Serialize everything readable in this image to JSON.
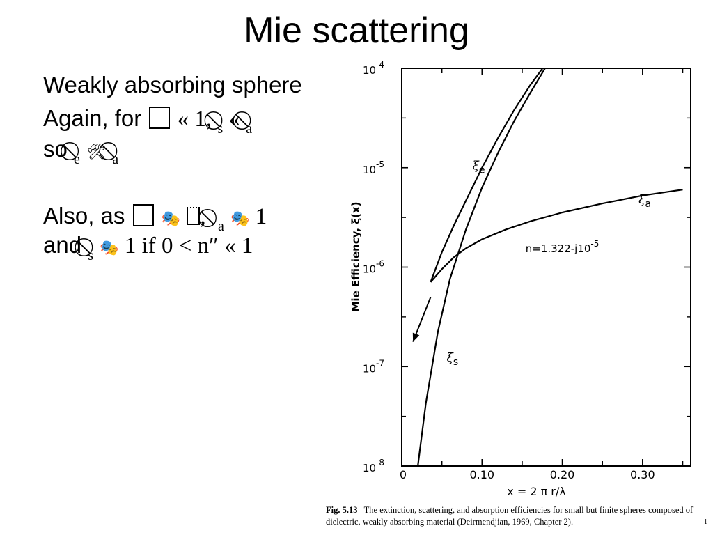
{
  "slide": {
    "title": "Mie scattering",
    "line1": "Weakly absorbing sphere",
    "line2": {
      "prefix": "Again, for ",
      "ll1": " « 1, ",
      "sub_s": "s",
      "ll2": " « ",
      "sub_a": "a"
    },
    "line3": {
      "prefix": "so ",
      "sub_e": "e",
      "sub_a": "a"
    },
    "line4": {
      "prefix": "Also, as ",
      "comma": ", ",
      "sub_a": "a",
      "one": " 1"
    },
    "line5": {
      "prefix": "and ",
      "sub_s": "s",
      "rest": " 1 if 0 < n″ « 1"
    },
    "icons": {
      "empty_box": "empty-box-icon",
      "no_symbol": "no-symbol-icon",
      "tools": "hammer-wrench-icon",
      "masks": "performing-arts-masks-icon",
      "small_box": "small-box-icon"
    }
  },
  "chart_data": {
    "type": "line",
    "ylabel": "Mie Efficiency,  ξ(x)",
    "xlabel": "x  = 2 π r/λ",
    "xlim": [
      0,
      0.36
    ],
    "ylim_log10": [
      -8,
      -4
    ],
    "x_ticks": [
      0,
      0.1,
      0.2,
      0.3
    ],
    "x_tick_labels": [
      "0",
      "0.10",
      "0.20",
      "0.30"
    ],
    "y_tick_labels": [
      {
        "base": "10",
        "exp": "-4",
        "log10": -4
      },
      {
        "base": "10",
        "exp": "-5",
        "log10": -5
      },
      {
        "base": "10",
        "exp": "-6",
        "log10": -6
      },
      {
        "base": "10",
        "exp": "-7",
        "log10": -7
      },
      {
        "base": "10",
        "exp": "-8",
        "log10": -8
      }
    ],
    "annotation": {
      "text": "n=1.322-j10",
      "exp": "-5",
      "x": 0.2,
      "log10": -5.85
    },
    "arrow": {
      "from": [
        0.036,
        -6.3
      ],
      "to": [
        0.014,
        -6.75
      ]
    },
    "series": [
      {
        "label": "ξ",
        "sub": "e",
        "label_x": 0.088,
        "label_log10": -5.02,
        "x": [
          0.036,
          0.05,
          0.065,
          0.08,
          0.1,
          0.12,
          0.14,
          0.16,
          0.18
        ],
        "log10": [
          -6.15,
          -5.85,
          -5.58,
          -5.33,
          -5.0,
          -4.7,
          -4.42,
          -4.17,
          -3.95
        ]
      },
      {
        "label": "ξ",
        "sub": "s",
        "label_x": 0.056,
        "label_log10": -6.95,
        "x": [
          0.02,
          0.03,
          0.045,
          0.06,
          0.08,
          0.1,
          0.12,
          0.14,
          0.16,
          0.18
        ],
        "log10": [
          -8.0,
          -7.37,
          -6.65,
          -6.12,
          -5.62,
          -5.2,
          -4.85,
          -4.53,
          -4.25,
          -3.98
        ]
      },
      {
        "label": "ξ",
        "sub": "a",
        "label_x": 0.295,
        "label_log10": -5.36,
        "x": [
          0.036,
          0.05,
          0.065,
          0.08,
          0.1,
          0.13,
          0.16,
          0.2,
          0.25,
          0.3,
          0.35
        ],
        "log10": [
          -6.15,
          -6.02,
          -5.9,
          -5.81,
          -5.72,
          -5.62,
          -5.54,
          -5.45,
          -5.36,
          -5.28,
          -5.22
        ]
      }
    ]
  },
  "caption": {
    "fig": "Fig. 5.13",
    "text": "The extinction, scattering, and absorption efficiencies for small but finite spheres composed of dielectric, weakly absorbing material (Deirmendjian, 1969, Chapter 2).",
    "page_mark": "1"
  }
}
